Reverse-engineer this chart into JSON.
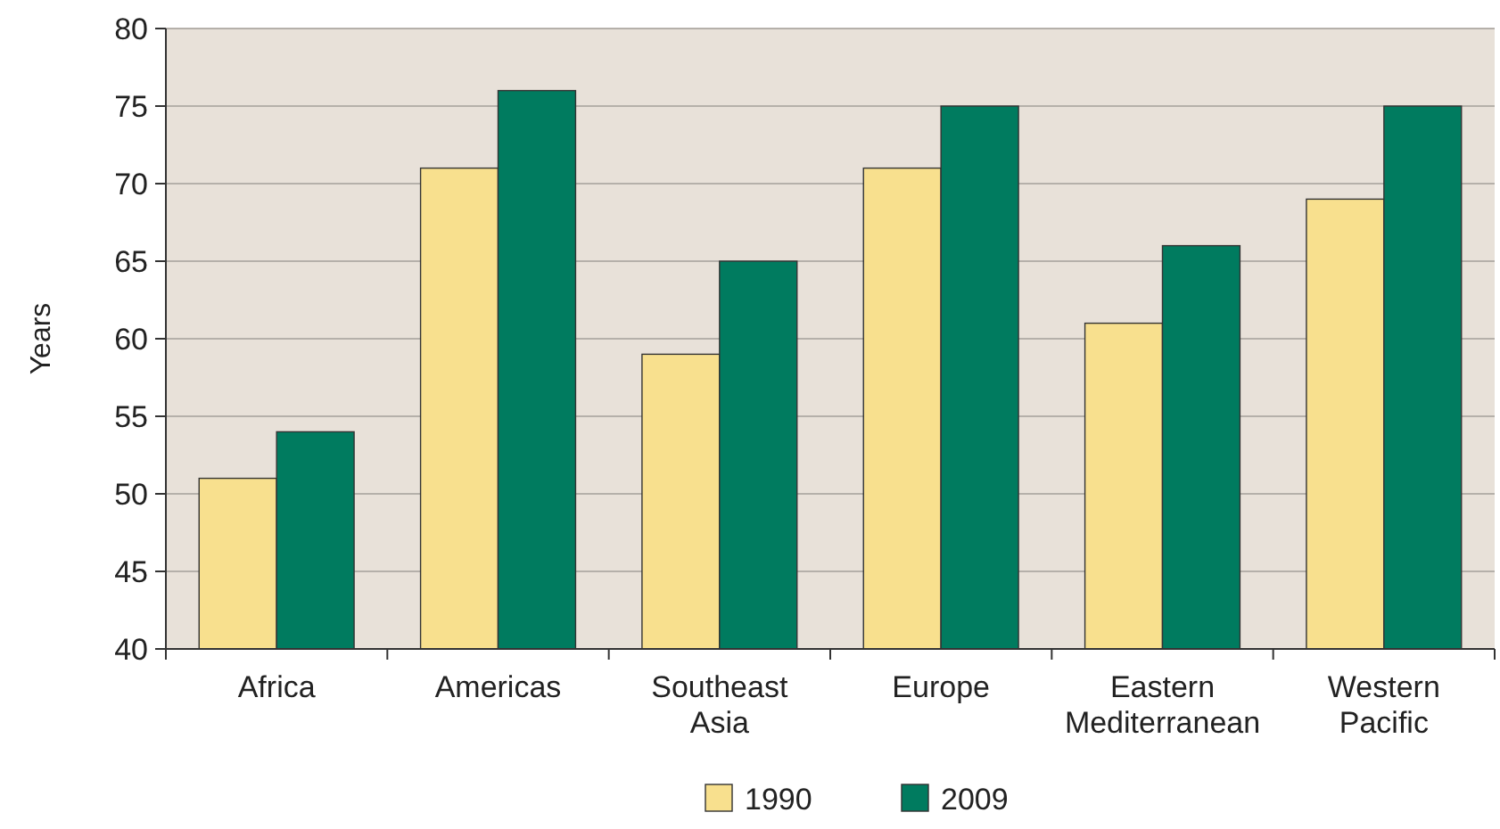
{
  "chart_data": {
    "type": "bar",
    "ylabel": "Years",
    "categories": [
      "Africa",
      "Americas",
      "Southeast Asia",
      "Europe",
      "Eastern Mediterranean",
      "Western Pacific"
    ],
    "series": [
      {
        "name": "1990",
        "color": "#f8e08e",
        "values": [
          51,
          71,
          59,
          71,
          61,
          69
        ]
      },
      {
        "name": "2009",
        "color": "#007b5f",
        "values": [
          54,
          76,
          65,
          75,
          66,
          75
        ]
      }
    ],
    "ylim": [
      40,
      80
    ],
    "yticks": [
      40,
      45,
      50,
      55,
      60,
      65,
      70,
      75,
      80
    ],
    "grid": "y",
    "legend": "bottom"
  }
}
